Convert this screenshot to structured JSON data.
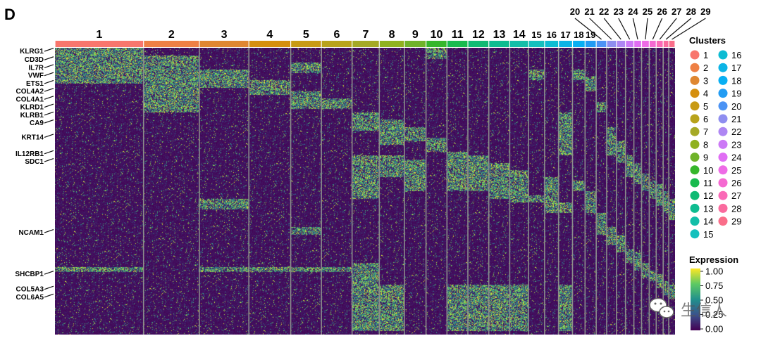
{
  "panel_letter": "D",
  "watermark_text": "生信人",
  "chart_data": {
    "type": "heatmap",
    "title": "",
    "xlabel": "",
    "ylabel": "",
    "clusters": [
      "1",
      "2",
      "3",
      "4",
      "5",
      "6",
      "7",
      "8",
      "9",
      "10",
      "11",
      "12",
      "13",
      "14",
      "15",
      "16",
      "17",
      "18",
      "19",
      "20",
      "21",
      "22",
      "23",
      "24",
      "25",
      "26",
      "27",
      "28",
      "29"
    ],
    "cluster_widths": [
      127,
      80,
      71,
      60,
      44,
      44,
      39,
      36,
      31,
      30,
      30,
      30,
      30,
      27,
      23,
      20,
      20,
      18,
      16,
      15,
      14,
      13,
      12,
      11,
      11,
      10,
      10,
      8,
      9
    ],
    "cluster_colors": [
      "#F8766D",
      "#EE8044",
      "#DF8731",
      "#D58F0E",
      "#C89A15",
      "#B8A31B",
      "#A5A926",
      "#8FB120",
      "#6FB32A",
      "#36B62B",
      "#19BA4E",
      "#10BA73",
      "#0EBC90",
      "#12BEA8",
      "#14C0BD",
      "#0DBCD3",
      "#0CB4E6",
      "#08AFF3",
      "#229CF3",
      "#4C93F4",
      "#8F8EF0",
      "#AE86F3",
      "#CC79F6",
      "#E06EF4",
      "#EE6BE6",
      "#F569D1",
      "#FA6AB7",
      "#FA6B9E",
      "#FA6E8A"
    ],
    "genes_labeled": [
      "KLRG1",
      "CD3D",
      "IL7R",
      "VWF",
      "ETS1",
      "COL4A2",
      "COL4A1",
      "KLRD1",
      "KLRB1",
      "CA9",
      "KRT14",
      "IL12RB1",
      "SDC1",
      "NCAM1",
      "SHCBP1",
      "COL5A3",
      "COL6A5"
    ],
    "gene_label_rows": [
      0,
      12,
      23,
      34,
      45,
      56,
      67,
      78,
      89,
      100,
      120,
      143,
      154,
      253,
      311,
      332,
      343
    ],
    "num_gene_rows": 400,
    "cluster_signature_rows": [
      [
        0,
        50,
        305,
        312
      ],
      [
        10,
        90
      ],
      [
        30,
        55,
        210,
        225,
        305,
        312
      ],
      [
        45,
        65,
        305,
        312
      ],
      [
        20,
        35,
        60,
        85,
        250,
        260,
        305,
        312
      ],
      [
        70,
        85,
        305,
        312
      ],
      [
        90,
        115,
        150,
        210,
        300,
        395
      ],
      [
        100,
        135,
        150,
        180,
        330,
        395
      ],
      [
        110,
        130,
        155,
        200
      ],
      [
        0,
        15,
        125,
        145
      ],
      [
        145,
        200,
        330,
        395
      ],
      [
        150,
        200,
        330,
        395
      ],
      [
        160,
        210,
        330,
        395
      ],
      [
        170,
        215,
        330,
        395
      ],
      [
        30,
        45,
        205,
        215
      ],
      [
        180,
        230
      ],
      [
        90,
        150,
        215,
        230,
        330,
        395
      ],
      [
        30,
        45,
        185,
        200
      ],
      [
        40,
        60,
        200,
        230
      ],
      [
        75,
        90,
        230,
        260
      ],
      [
        110,
        150,
        250,
        275
      ],
      [
        130,
        160,
        260,
        285
      ],
      [
        150,
        180,
        280,
        300
      ],
      [
        160,
        190,
        285,
        310
      ],
      [
        175,
        200,
        300,
        320
      ],
      [
        185,
        210,
        310,
        325
      ],
      [
        190,
        220,
        315,
        335
      ],
      [
        200,
        230,
        325,
        345
      ],
      [
        210,
        240,
        330,
        350
      ]
    ],
    "color_scale": {
      "min": 0.0,
      "max": 1.0,
      "low": "#440154",
      "mid": "#21908C",
      "high": "#FDE725"
    },
    "legend": {
      "clusters_title": "Clusters",
      "expression_title": "Expression",
      "expression_ticks": [
        "1.00",
        "0.75",
        "0.50",
        "0.25",
        "0.00"
      ],
      "placement": "right"
    }
  }
}
